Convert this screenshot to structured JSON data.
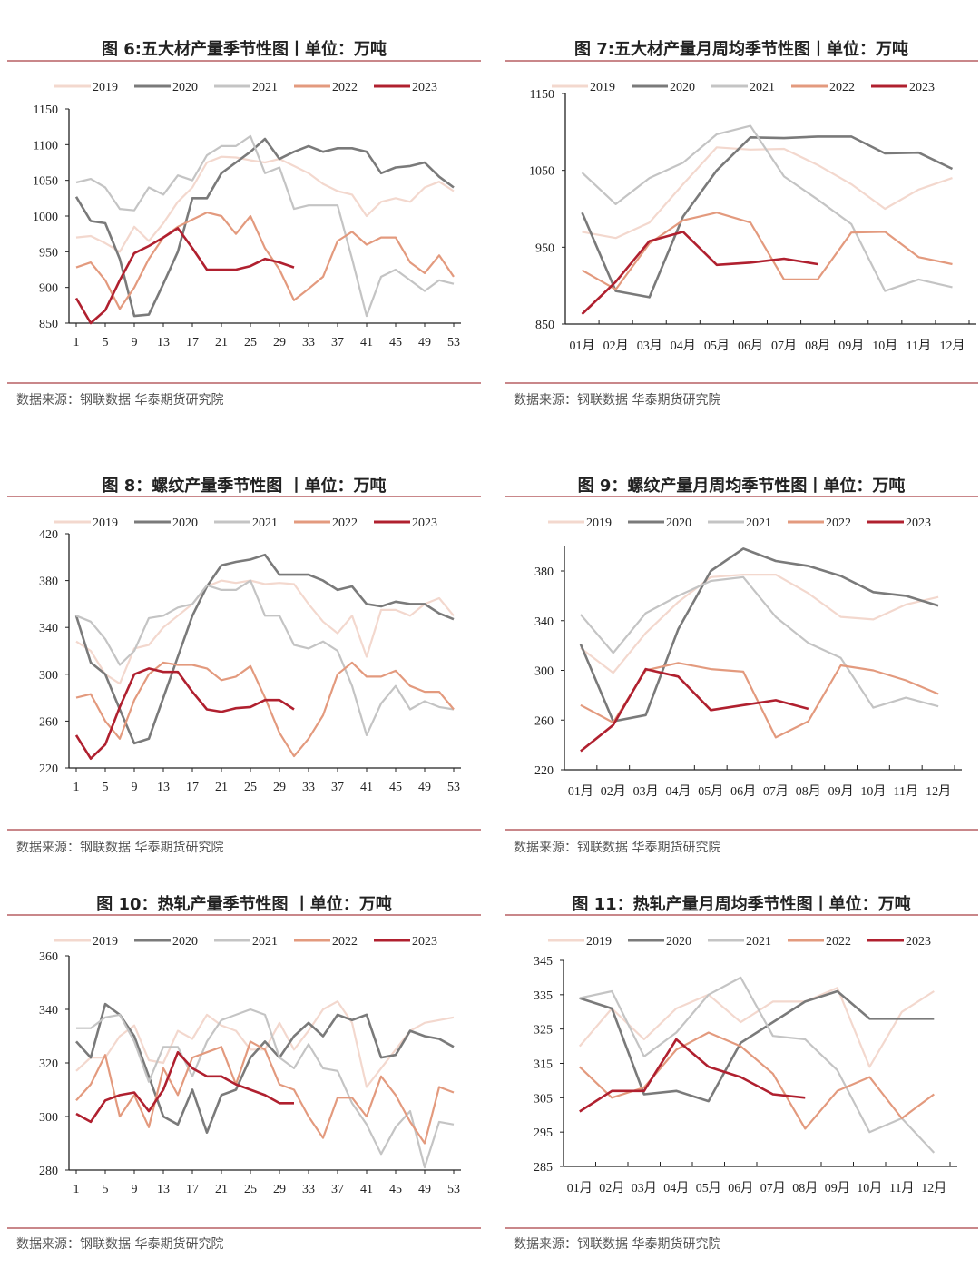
{
  "source_label": "数据来源：钢联数据 华泰期货研究院",
  "colors": {
    "2019": "#f3d8ce",
    "2020": "#7a7a7a",
    "2021": "#c4c4c4",
    "2022": "#e39a7e",
    "2023": "#b0202f",
    "rule": "#c9878a"
  },
  "chart_data": [
    {
      "title": "图 6:五大材产量季节性图丨单位：万吨",
      "type": "line",
      "x_type": "week",
      "ylim": [
        850,
        1150
      ],
      "yticks": [
        850,
        900,
        950,
        1000,
        1050,
        1100,
        1150
      ],
      "xticks": [
        1,
        5,
        9,
        13,
        17,
        21,
        25,
        29,
        33,
        37,
        41,
        45,
        49,
        53
      ],
      "x": [
        1,
        3,
        5,
        7,
        9,
        11,
        13,
        15,
        17,
        19,
        21,
        23,
        25,
        27,
        29,
        31,
        33,
        35,
        37,
        39,
        41,
        43,
        45,
        47,
        49,
        51,
        53
      ],
      "legend": "top",
      "series": [
        {
          "name": "2019",
          "values": [
            970,
            972,
            962,
            950,
            985,
            965,
            990,
            1020,
            1040,
            1075,
            1083,
            1082,
            1078,
            1075,
            1080,
            1070,
            1060,
            1045,
            1035,
            1030,
            1000,
            1020,
            1025,
            1020,
            1040,
            1048,
            1035
          ]
        },
        {
          "name": "2020",
          "values": [
            1027,
            993,
            990,
            940,
            860,
            862,
            905,
            950,
            1025,
            1025,
            1060,
            1075,
            1090,
            1108,
            1080,
            1090,
            1098,
            1090,
            1095,
            1095,
            1090,
            1060,
            1068,
            1070,
            1075,
            1055,
            1040
          ]
        },
        {
          "name": "2021",
          "values": [
            1047,
            1052,
            1040,
            1010,
            1008,
            1040,
            1030,
            1057,
            1050,
            1085,
            1098,
            1098,
            1112,
            1060,
            1068,
            1010,
            1015,
            1015,
            1015,
            940,
            860,
            915,
            925,
            910,
            895,
            910,
            905
          ]
        },
        {
          "name": "2022",
          "values": [
            928,
            935,
            910,
            870,
            900,
            940,
            970,
            985,
            995,
            1005,
            1000,
            975,
            1000,
            955,
            925,
            882,
            898,
            915,
            965,
            978,
            960,
            970,
            970,
            935,
            920,
            945,
            915
          ]
        },
        {
          "name": "2023",
          "values": [
            885,
            850,
            868,
            910,
            948,
            958,
            970,
            983,
            955,
            925,
            925,
            925,
            930,
            940,
            935,
            928,
            null,
            null,
            null,
            null,
            null,
            null,
            null,
            null,
            null,
            null,
            null
          ]
        }
      ]
    },
    {
      "title": "图 7:五大材产量月周均季节性图丨单位：万吨",
      "type": "line",
      "x_type": "month",
      "ylim": [
        850,
        1150
      ],
      "yticks": [
        850,
        950,
        1050,
        1150
      ],
      "categories": [
        "01月",
        "02月",
        "03月",
        "04月",
        "05月",
        "06月",
        "07月",
        "08月",
        "09月",
        "10月",
        "11月",
        "12月"
      ],
      "legend": "top",
      "series": [
        {
          "name": "2019",
          "values": [
            970,
            962,
            982,
            1032,
            1080,
            1077,
            1078,
            1057,
            1032,
            1000,
            1025,
            1040
          ]
        },
        {
          "name": "2020",
          "values": [
            995,
            893,
            885,
            990,
            1050,
            1093,
            1092,
            1094,
            1094,
            1072,
            1073,
            1052
          ]
        },
        {
          "name": "2021",
          "values": [
            1047,
            1006,
            1040,
            1060,
            1097,
            1108,
            1042,
            1012,
            980,
            893,
            908,
            898
          ]
        },
        {
          "name": "2022",
          "values": [
            920,
            895,
            955,
            985,
            995,
            982,
            908,
            908,
            969,
            970,
            937,
            928
          ]
        },
        {
          "name": "2023",
          "values": [
            863,
            905,
            958,
            970,
            927,
            930,
            935,
            928,
            null,
            null,
            null,
            null
          ]
        }
      ]
    },
    {
      "title": "图 8：螺纹产量季节性图 丨单位：万吨",
      "type": "line",
      "x_type": "week",
      "ylim": [
        220,
        420
      ],
      "yticks": [
        220,
        260,
        300,
        340,
        380,
        420
      ],
      "xticks": [
        1,
        5,
        9,
        13,
        17,
        21,
        25,
        29,
        33,
        37,
        41,
        45,
        49,
        53
      ],
      "x": [
        1,
        3,
        5,
        7,
        9,
        11,
        13,
        15,
        17,
        19,
        21,
        23,
        25,
        27,
        29,
        31,
        33,
        35,
        37,
        39,
        41,
        43,
        45,
        47,
        49,
        51,
        53
      ],
      "legend": "top",
      "series": [
        {
          "name": "2019",
          "values": [
            328,
            320,
            300,
            292,
            322,
            325,
            340,
            350,
            360,
            375,
            380,
            378,
            380,
            377,
            378,
            377,
            360,
            345,
            335,
            350,
            315,
            355,
            355,
            350,
            360,
            365,
            350
          ]
        },
        {
          "name": "2020",
          "values": [
            350,
            310,
            300,
            270,
            241,
            245,
            280,
            315,
            350,
            375,
            393,
            396,
            398,
            402,
            385,
            385,
            385,
            380,
            372,
            375,
            360,
            358,
            362,
            360,
            360,
            352,
            347
          ]
        },
        {
          "name": "2021",
          "values": [
            350,
            345,
            330,
            308,
            320,
            348,
            350,
            357,
            360,
            376,
            372,
            372,
            380,
            350,
            350,
            325,
            322,
            328,
            320,
            290,
            248,
            275,
            290,
            270,
            277,
            272,
            270
          ]
        },
        {
          "name": "2022",
          "values": [
            280,
            283,
            260,
            245,
            278,
            300,
            310,
            308,
            308,
            305,
            295,
            298,
            307,
            280,
            250,
            230,
            245,
            265,
            300,
            310,
            298,
            298,
            303,
            290,
            285,
            285,
            270
          ]
        },
        {
          "name": "2023",
          "values": [
            248,
            228,
            240,
            272,
            300,
            305,
            302,
            302,
            285,
            270,
            268,
            271,
            272,
            278,
            278,
            270,
            null,
            null,
            null,
            null,
            null,
            null,
            null,
            null,
            null,
            null,
            null
          ]
        }
      ]
    },
    {
      "title": "图 9：螺纹产量月周均季节性图丨单位：万吨",
      "type": "line",
      "x_type": "month",
      "ylim": [
        220,
        400
      ],
      "yticks": [
        220,
        260,
        300,
        340,
        380
      ],
      "categories": [
        "01月",
        "02月",
        "03月",
        "04月",
        "05月",
        "06月",
        "07月",
        "08月",
        "09月",
        "10月",
        "11月",
        "12月"
      ],
      "legend": "top",
      "series": [
        {
          "name": "2019",
          "values": [
            318,
            298,
            330,
            355,
            375,
            377,
            377,
            362,
            343,
            341,
            353,
            359
          ]
        },
        {
          "name": "2020",
          "values": [
            321,
            259,
            264,
            333,
            380,
            398,
            388,
            384,
            376,
            363,
            360,
            352
          ]
        },
        {
          "name": "2021",
          "values": [
            345,
            314,
            346,
            360,
            372,
            375,
            343,
            322,
            310,
            270,
            278,
            271
          ]
        },
        {
          "name": "2022",
          "values": [
            272,
            258,
            300,
            306,
            301,
            299,
            246,
            259,
            304,
            300,
            292,
            281
          ]
        },
        {
          "name": "2023",
          "values": [
            235,
            256,
            301,
            295,
            268,
            272,
            276,
            269,
            null,
            null,
            null,
            null
          ]
        }
      ]
    },
    {
      "title": "图 10：热轧产量季节性图 丨单位：万吨",
      "type": "line",
      "x_type": "week",
      "ylim": [
        280,
        360
      ],
      "yticks": [
        280,
        300,
        320,
        340,
        360
      ],
      "xticks": [
        1,
        5,
        9,
        13,
        17,
        21,
        25,
        29,
        33,
        37,
        41,
        45,
        49,
        53
      ],
      "x": [
        1,
        3,
        5,
        7,
        9,
        11,
        13,
        15,
        17,
        19,
        21,
        23,
        25,
        27,
        29,
        31,
        33,
        35,
        37,
        39,
        41,
        43,
        45,
        47,
        49,
        51,
        53
      ],
      "legend": "top",
      "series": [
        {
          "name": "2019",
          "values": [
            317,
            322,
            322,
            330,
            334,
            321,
            320,
            332,
            329,
            338,
            334,
            332,
            325,
            325,
            335,
            325,
            332,
            340,
            343,
            335,
            311,
            318,
            325,
            332,
            335,
            336,
            337
          ]
        },
        {
          "name": "2020",
          "values": [
            328,
            322,
            342,
            338,
            330,
            315,
            300,
            297,
            310,
            294,
            308,
            310,
            322,
            328,
            322,
            330,
            335,
            330,
            338,
            336,
            338,
            322,
            323,
            332,
            330,
            329,
            326
          ]
        },
        {
          "name": "2021",
          "values": [
            333,
            333,
            337,
            338,
            328,
            313,
            326,
            326,
            315,
            328,
            336,
            338,
            340,
            338,
            322,
            318,
            327,
            318,
            317,
            305,
            297,
            286,
            296,
            302,
            281,
            298,
            297
          ]
        },
        {
          "name": "2022",
          "values": [
            306,
            312,
            323,
            300,
            308,
            296,
            318,
            308,
            322,
            324,
            326,
            312,
            328,
            325,
            312,
            310,
            300,
            292,
            307,
            307,
            300,
            315,
            308,
            298,
            290,
            311,
            309
          ]
        },
        {
          "name": "2023",
          "values": [
            301,
            298,
            306,
            308,
            309,
            302,
            310,
            324,
            318,
            315,
            315,
            312,
            310,
            308,
            305,
            305,
            null,
            null,
            null,
            null,
            null,
            null,
            null,
            null,
            null,
            null,
            null
          ]
        }
      ]
    },
    {
      "title": "图 11：热轧产量月周均季节性图丨单位：万吨",
      "type": "line",
      "x_type": "month",
      "ylim": [
        285,
        345
      ],
      "yticks": [
        285,
        295,
        305,
        315,
        325,
        335,
        345
      ],
      "categories": [
        "01月",
        "02月",
        "03月",
        "04月",
        "05月",
        "06月",
        "07月",
        "08月",
        "09月",
        "10月",
        "11月",
        "12月"
      ],
      "legend": "top",
      "series": [
        {
          "name": "2019",
          "values": [
            320,
            331,
            322,
            331,
            335,
            327,
            333,
            333,
            337,
            314,
            330,
            336
          ]
        },
        {
          "name": "2020",
          "values": [
            334,
            331,
            306,
            307,
            304,
            321,
            327,
            333,
            336,
            328,
            328,
            328
          ]
        },
        {
          "name": "2021",
          "values": [
            334,
            336,
            317,
            324,
            335,
            340,
            323,
            322,
            313,
            295,
            299,
            289
          ]
        },
        {
          "name": "2022",
          "values": [
            314,
            305,
            308,
            319,
            324,
            320,
            312,
            296,
            307,
            311,
            299,
            306
          ]
        },
        {
          "name": "2023",
          "values": [
            301,
            307,
            307,
            322,
            314,
            311,
            306,
            305,
            null,
            null,
            null,
            null
          ]
        }
      ]
    }
  ]
}
